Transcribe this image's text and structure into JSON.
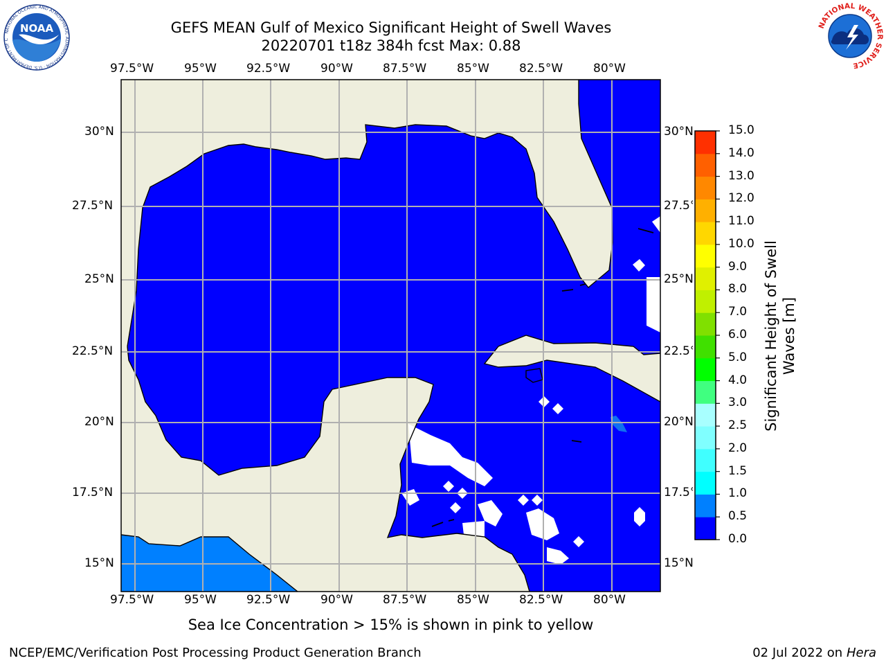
{
  "title": {
    "line1": "GEFS MEAN Gulf of Mexico Significant Height of Swell Waves",
    "line2": "20220701 t18z 384h fcst   Max: 0.88"
  },
  "map": {
    "lon_min": -98.0,
    "lon_max": -78.25,
    "lat_min": 14.0,
    "lat_max": 31.8,
    "lon_ticks": [
      "97.5°W",
      "95°W",
      "92.5°W",
      "90°W",
      "87.5°W",
      "85°W",
      "82.5°W",
      "80°W"
    ],
    "lat_ticks": [
      "30°N",
      "27.5°N",
      "25°N",
      "22.5°N",
      "20°N",
      "17.5°N",
      "15°N"
    ],
    "land_color": "#eeeedd",
    "ocean_color": "#0000ff",
    "grid_color": "#b0b0b0",
    "max_value": 0.88
  },
  "colorbar": {
    "label": "Significant Height of Swell Waves [m]",
    "ticks": [
      "0.0",
      "0.5",
      "1.0",
      "1.5",
      "2.0",
      "2.5",
      "3.0",
      "4.0",
      "5.0",
      "6.0",
      "7.0",
      "8.0",
      "9.0",
      "10.0",
      "11.0",
      "12.0",
      "13.0",
      "14.0",
      "15.0"
    ],
    "colors": [
      "#0000ff",
      "#0080ff",
      "#00ffff",
      "#40ffff",
      "#80ffff",
      "#a8ffff",
      "#40ff80",
      "#00ff00",
      "#40e000",
      "#80e000",
      "#c0f000",
      "#e0f000",
      "#ffff00",
      "#ffd700",
      "#ffb000",
      "#ff8800",
      "#ff6000",
      "#ff3000",
      "#ff0000"
    ]
  },
  "subtitle": "Sea Ice Concentration > 15% is shown in pink to yellow",
  "footer": {
    "left": "NCEP/EMC/Verification Post Processing Product Generation Branch",
    "date": "02 Jul 2022 on ",
    "host": "Hera"
  },
  "logos": {
    "noaa_text": "NOAA",
    "noaa_ring": "NATIONAL OCEANIC AND ATMOSPHERIC ADMINISTRATION · U.S. DEPARTMENT OF COMMERCE",
    "nws_ring": "NATIONAL WEATHER SERVICE"
  }
}
